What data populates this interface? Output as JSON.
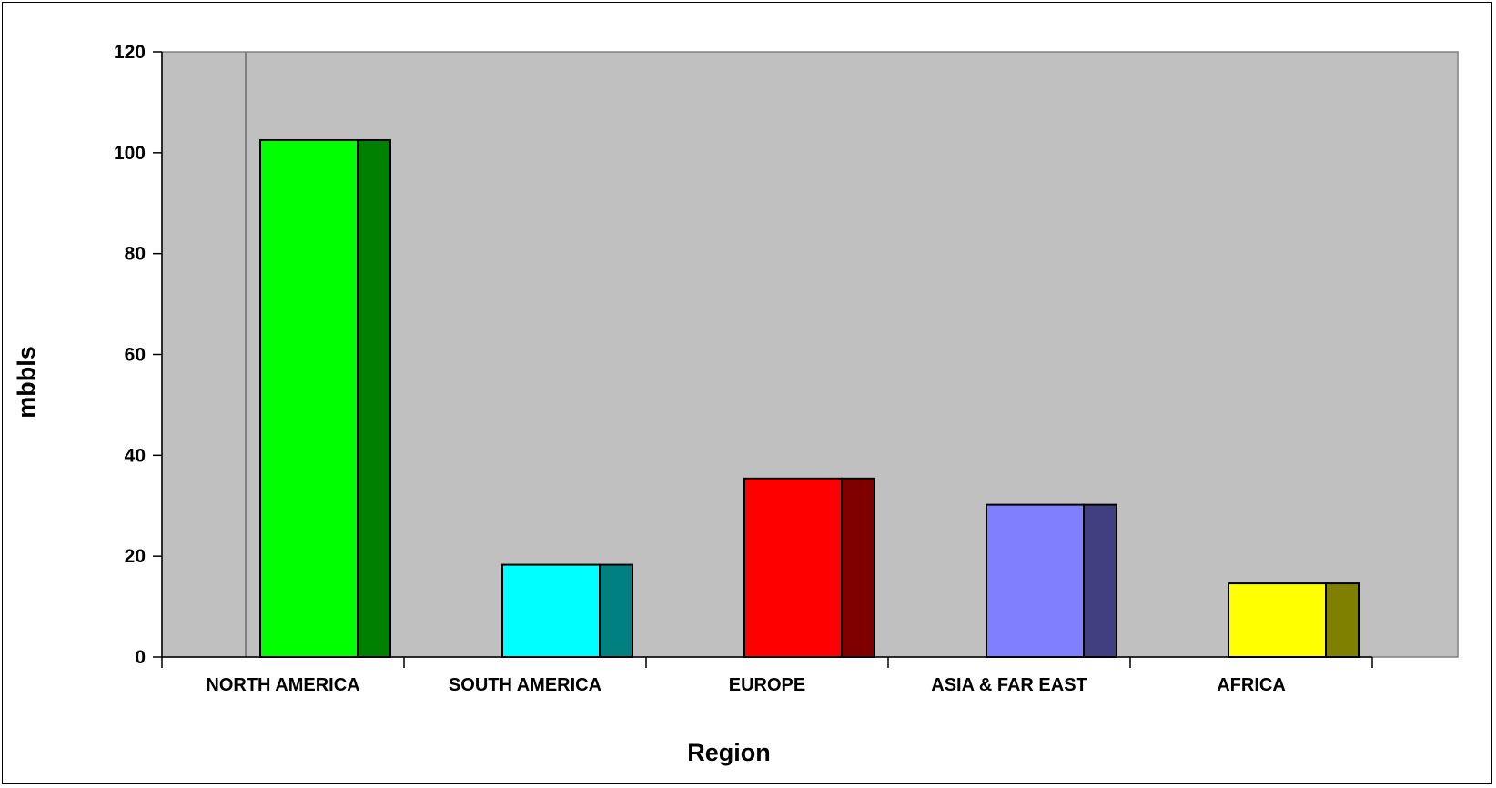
{
  "chart_data": {
    "type": "bar",
    "title": "",
    "xlabel": "Region",
    "ylabel": "mbbls",
    "ylim": [
      0,
      120
    ],
    "yticks": [
      "0",
      "20",
      "40",
      "60",
      "80",
      "100",
      "120"
    ],
    "grid": false,
    "categories": [
      "NORTH AMERICA",
      "SOUTH AMERICA",
      "EUROPE",
      "ASIA & FAR EAST",
      "AFRICA"
    ],
    "values": [
      102.5,
      18.3,
      35.4,
      30.2,
      14.6
    ],
    "colors": {
      "plot_background": "#c0c0c0",
      "bar_faces": [
        "#00ff00",
        "#00ffff",
        "#ff0000",
        "#8080ff",
        "#ffff00"
      ],
      "bar_sides": [
        "#008000",
        "#008080",
        "#800000",
        "#404080",
        "#808000"
      ]
    }
  }
}
